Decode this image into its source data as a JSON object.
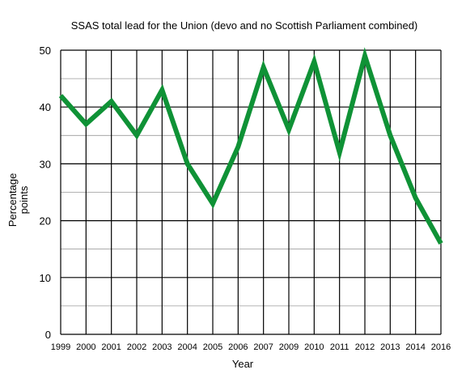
{
  "chart_data": {
    "type": "line",
    "title": "SSAS total lead for the Union (devo and no Scottish Parliament combined)",
    "xlabel": "Year",
    "ylabel_lines": [
      "Percentage",
      "points"
    ],
    "categories": [
      "1999",
      "2000",
      "2001",
      "2002",
      "2003",
      "2004",
      "2005",
      "2006",
      "2007",
      "2009",
      "2010",
      "2011",
      "2012",
      "2013",
      "2014",
      "2016"
    ],
    "series": [
      {
        "values": [
          42,
          37,
          41,
          35,
          43,
          30,
          23,
          33,
          47,
          36,
          48,
          32,
          49,
          35,
          24,
          16
        ]
      }
    ],
    "ylim": [
      0,
      50
    ],
    "yticks": [
      "0",
      "10",
      "20",
      "30",
      "40",
      "50"
    ],
    "grid": true,
    "line_color": "#0f9236"
  }
}
